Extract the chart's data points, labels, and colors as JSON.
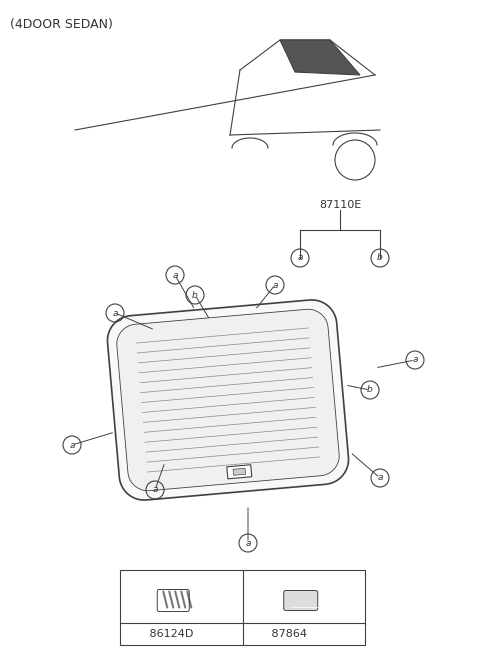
{
  "title": "(4DOOR SEDAN)",
  "part_number_main": "87110E",
  "part_a_code": "86124D",
  "part_b_code": "87864",
  "label_a": "a",
  "label_b": "b",
  "bg_color": "#ffffff",
  "line_color": "#404040",
  "label_color": "#333333",
  "fig_width": 4.8,
  "fig_height": 6.56,
  "dpi": 100
}
